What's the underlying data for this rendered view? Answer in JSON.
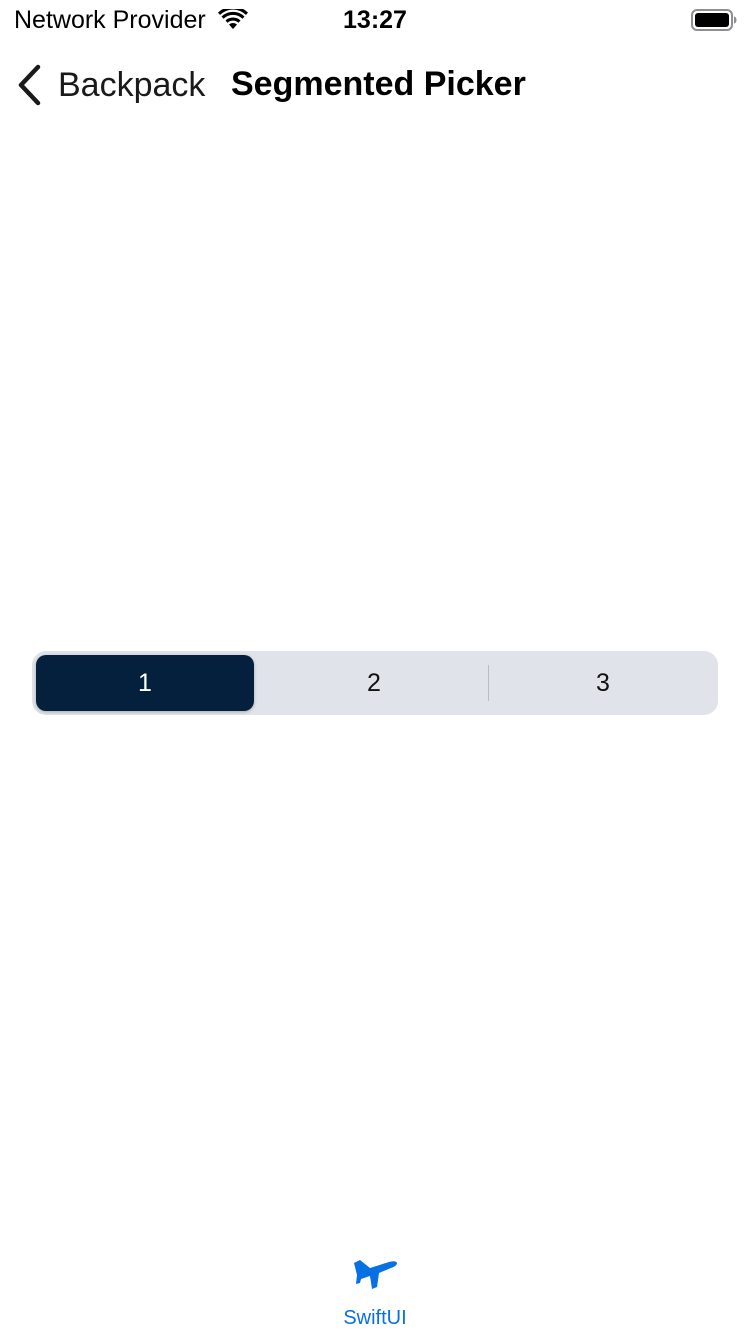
{
  "status_bar": {
    "carrier": "Network Provider",
    "time": "13:27"
  },
  "nav": {
    "back_label": "Backpack",
    "title": "Segmented Picker"
  },
  "segmented_picker": {
    "segments": [
      "1",
      "2",
      "3"
    ],
    "selected_index": 0
  },
  "tab_bar": {
    "items": [
      {
        "label": "SwiftUI",
        "icon": "airplane-icon"
      }
    ]
  },
  "colors": {
    "selected_segment": "#05203c",
    "picker_background": "#e0e3e9",
    "tab_accent": "#0770e3"
  }
}
